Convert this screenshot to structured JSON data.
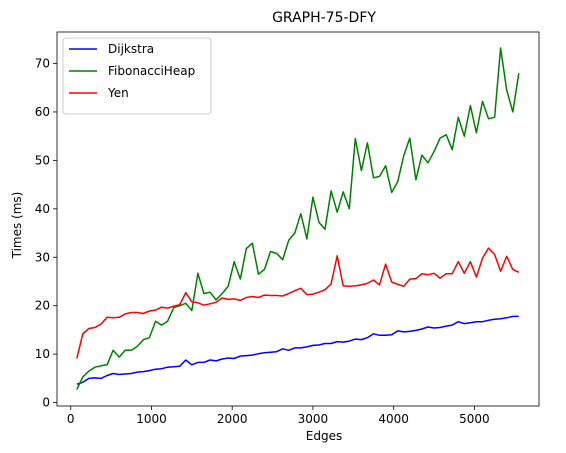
{
  "chart_data": {
    "type": "line",
    "title": "GRAPH-75-DFY",
    "xlabel": "Edges",
    "ylabel": "Times (ms)",
    "xlim": [
      -170,
      5800
    ],
    "ylim": [
      -0.7,
      76.5
    ],
    "xticks": [
      0,
      1000,
      2000,
      3000,
      4000,
      5000
    ],
    "yticks": [
      0,
      10,
      20,
      30,
      40,
      50,
      60,
      70
    ],
    "grid": false,
    "legend_position": "top-left",
    "x": [
      75,
      150,
      225,
      300,
      375,
      450,
      525,
      600,
      675,
      750,
      825,
      900,
      975,
      1050,
      1125,
      1200,
      1275,
      1350,
      1425,
      1500,
      1575,
      1650,
      1725,
      1800,
      1875,
      1950,
      2025,
      2100,
      2175,
      2250,
      2325,
      2400,
      2475,
      2550,
      2625,
      2700,
      2775,
      2850,
      2925,
      3000,
      3075,
      3150,
      3225,
      3300,
      3375,
      3450,
      3525,
      3600,
      3675,
      3750,
      3825,
      3900,
      3975,
      4050,
      4125,
      4200,
      4275,
      4350,
      4425,
      4500,
      4575,
      4650,
      4725,
      4800,
      4875,
      4950,
      5025,
      5100,
      5175,
      5250,
      5325,
      5400,
      5475,
      5550
    ],
    "series": [
      {
        "name": "Dijkstra",
        "color": "#0000ff",
        "values": [
          3.8,
          4.2,
          5.0,
          5.1,
          5.0,
          5.6,
          6.0,
          5.8,
          5.9,
          6.0,
          6.3,
          6.4,
          6.6,
          6.9,
          7.0,
          7.3,
          7.4,
          7.5,
          8.8,
          7.8,
          8.3,
          8.3,
          8.8,
          8.6,
          9.0,
          9.2,
          9.1,
          9.6,
          9.7,
          9.8,
          10.1,
          10.3,
          10.4,
          10.5,
          11.1,
          10.8,
          11.3,
          11.3,
          11.5,
          11.8,
          11.9,
          12.2,
          12.2,
          12.6,
          12.5,
          12.7,
          13.1,
          13.0,
          13.4,
          14.2,
          13.9,
          13.9,
          14.0,
          14.8,
          14.6,
          14.7,
          14.9,
          15.2,
          15.6,
          15.4,
          15.5,
          15.8,
          16.0,
          16.7,
          16.3,
          16.5,
          16.7,
          16.7,
          17.0,
          17.2,
          17.3,
          17.5,
          17.8,
          17.8
        ]
      },
      {
        "name": "FibonacciHeap",
        "color": "#008000",
        "values": [
          2.7,
          5.3,
          6.5,
          7.3,
          7.6,
          7.8,
          10.8,
          9.4,
          10.8,
          10.8,
          11.6,
          13.0,
          13.4,
          16.8,
          16.0,
          16.8,
          19.6,
          20.0,
          20.5,
          19.0,
          26.7,
          22.5,
          22.8,
          21.2,
          22.5,
          24.0,
          29.1,
          25.5,
          31.8,
          32.9,
          26.5,
          27.5,
          31.2,
          30.8,
          29.5,
          33.5,
          35.0,
          39.0,
          33.8,
          42.4,
          37.2,
          35.8,
          43.7,
          39.3,
          43.5,
          40.0,
          54.5,
          47.9,
          53.6,
          46.4,
          46.7,
          48.9,
          43.4,
          45.6,
          51.0,
          54.6,
          46.0,
          51.1,
          49.5,
          51.8,
          54.6,
          55.3,
          52.2,
          58.9,
          55.0,
          61.3,
          55.7,
          62.2,
          58.6,
          58.9,
          73.2,
          64.5,
          60.0,
          68.0
        ]
      },
      {
        "name": "Yen",
        "color": "#ff0000",
        "values": [
          9.1,
          14.2,
          15.3,
          15.5,
          16.2,
          17.6,
          17.5,
          17.6,
          18.3,
          18.6,
          18.6,
          18.4,
          18.9,
          19.1,
          19.7,
          19.5,
          19.9,
          20.2,
          22.7,
          20.8,
          20.6,
          20.1,
          20.4,
          20.7,
          21.6,
          21.3,
          21.4,
          21.1,
          21.7,
          21.9,
          21.7,
          22.2,
          22.1,
          22.1,
          22.0,
          22.5,
          23.1,
          23.6,
          22.3,
          22.4,
          22.8,
          23.3,
          24.5,
          30.3,
          24.1,
          24.0,
          24.1,
          24.3,
          24.6,
          25.3,
          24.3,
          28.6,
          24.9,
          24.4,
          24.0,
          25.5,
          25.6,
          26.6,
          26.4,
          26.7,
          25.7,
          26.6,
          26.6,
          29.1,
          26.7,
          29.1,
          25.9,
          29.8,
          31.9,
          30.6,
          27.1,
          30.2,
          27.5,
          26.9
        ]
      }
    ]
  }
}
